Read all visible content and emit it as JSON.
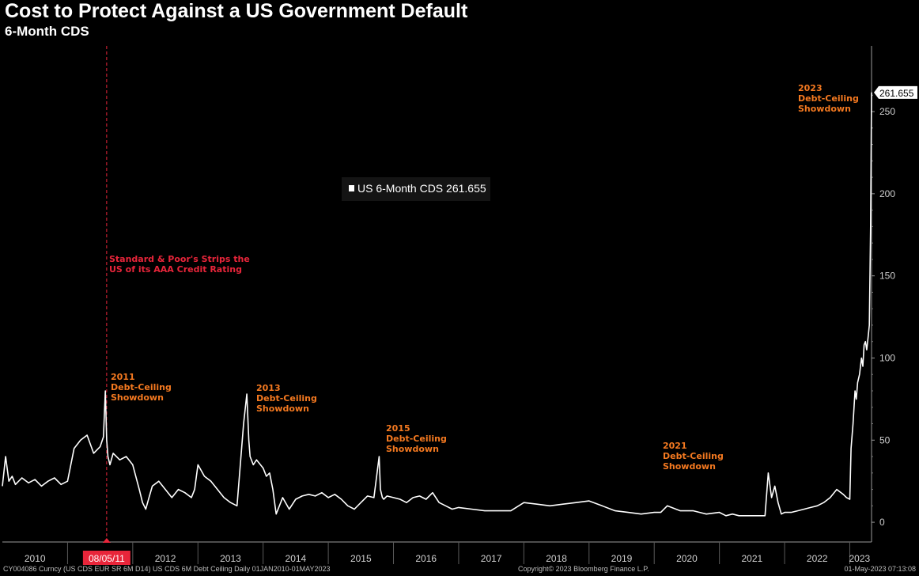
{
  "header": {
    "title": "Cost to Protect Against a US Government Default",
    "subtitle": "6-Month CDS"
  },
  "legend": {
    "label": "US 6-Month CDS 261.655"
  },
  "footer": {
    "left": "CY004086 Curncy (US CDS EUR SR 6M D14) US CDS 6M Debt Ceiling  Daily 01JAN2010-01MAY2023",
    "center": "Copyright© 2023 Bloomberg Finance L.P.",
    "right": "01-May-2023 07:13:08"
  },
  "chart_data": {
    "type": "line",
    "title": "Cost to Protect Against a US Government Default",
    "subtitle": "6-Month CDS",
    "ylim": [
      -12,
      290
    ],
    "yticks": [
      0,
      50,
      100,
      150,
      200,
      250
    ],
    "xlim": [
      2010.0,
      2023.334
    ],
    "xtick_labels": [
      "2010",
      "2012",
      "2013",
      "2014",
      "2015",
      "2016",
      "2017",
      "2018",
      "2019",
      "2020",
      "2021",
      "2022",
      "2023"
    ],
    "xtick_positions": [
      2010.5,
      2012.5,
      2013.5,
      2014.5,
      2015.5,
      2016.5,
      2017.5,
      2018.5,
      2019.5,
      2020.5,
      2021.5,
      2022.5,
      2023.15
    ],
    "year_boundaries": [
      2011,
      2012,
      2013,
      2014,
      2015,
      2016,
      2017,
      2018,
      2019,
      2020,
      2021,
      2022,
      2023
    ],
    "highlight_date": {
      "label": "08/05/11",
      "x": 2011.6
    },
    "last_value": {
      "label": "261.655",
      "value": 261.655
    },
    "colors": {
      "line": "#ffffff",
      "annotation": "#f47920",
      "event": "#e8253a",
      "axis": "#9a9a9a"
    },
    "series": [
      {
        "name": "US 6-Month CDS",
        "x": [
          2010.0,
          2010.05,
          2010.1,
          2010.15,
          2010.2,
          2010.3,
          2010.4,
          2010.5,
          2010.6,
          2010.7,
          2010.8,
          2010.9,
          2011.0,
          2011.1,
          2011.2,
          2011.3,
          2011.4,
          2011.5,
          2011.55,
          2011.58,
          2011.6,
          2011.62,
          2011.65,
          2011.7,
          2011.8,
          2011.9,
          2012.0,
          2012.1,
          2012.15,
          2012.2,
          2012.25,
          2012.3,
          2012.4,
          2012.5,
          2012.6,
          2012.7,
          2012.8,
          2012.9,
          2012.95,
          2013.0,
          2013.1,
          2013.2,
          2013.3,
          2013.4,
          2013.5,
          2013.6,
          2013.7,
          2013.75,
          2013.78,
          2013.8,
          2013.85,
          2013.9,
          2014.0,
          2014.05,
          2014.1,
          2014.15,
          2014.2,
          2014.3,
          2014.4,
          2014.5,
          2014.6,
          2014.7,
          2014.8,
          2014.9,
          2015.0,
          2015.1,
          2015.2,
          2015.3,
          2015.4,
          2015.5,
          2015.6,
          2015.7,
          2015.78,
          2015.8,
          2015.83,
          2015.85,
          2015.9,
          2016.0,
          2016.1,
          2016.2,
          2016.3,
          2016.4,
          2016.5,
          2016.6,
          2016.7,
          2016.8,
          2016.9,
          2017.0,
          2017.2,
          2017.4,
          2017.6,
          2017.8,
          2018.0,
          2018.2,
          2018.4,
          2018.6,
          2018.8,
          2019.0,
          2019.2,
          2019.4,
          2019.6,
          2019.8,
          2020.0,
          2020.1,
          2020.2,
          2020.4,
          2020.6,
          2020.8,
          2021.0,
          2021.1,
          2021.2,
          2021.3,
          2021.4,
          2021.5,
          2021.6,
          2021.7,
          2021.75,
          2021.8,
          2021.85,
          2021.9,
          2021.95,
          2022.0,
          2022.1,
          2022.2,
          2022.3,
          2022.4,
          2022.5,
          2022.6,
          2022.7,
          2022.8,
          2022.9,
          2022.95,
          2023.0,
          2023.02,
          2023.05,
          2023.08,
          2023.1,
          2023.12,
          2023.15,
          2023.18,
          2023.2,
          2023.22,
          2023.24,
          2023.26,
          2023.28,
          2023.3,
          2023.32,
          2023.334
        ],
        "values": [
          22,
          40,
          25,
          28,
          23,
          27,
          24,
          26,
          22,
          25,
          27,
          23,
          25,
          45,
          50,
          53,
          42,
          46,
          52,
          80,
          50,
          40,
          35,
          42,
          38,
          40,
          35,
          20,
          12,
          8,
          15,
          22,
          25,
          20,
          15,
          20,
          18,
          15,
          20,
          35,
          28,
          25,
          20,
          15,
          12,
          10,
          60,
          78,
          50,
          40,
          35,
          38,
          33,
          28,
          30,
          20,
          5,
          15,
          8,
          14,
          16,
          17,
          16,
          18,
          15,
          17,
          14,
          10,
          8,
          12,
          16,
          15,
          40,
          20,
          15,
          14,
          16,
          15,
          14,
          12,
          15,
          16,
          14,
          18,
          12,
          10,
          8,
          9,
          8,
          7,
          7,
          7,
          12,
          11,
          10,
          11,
          12,
          13,
          10,
          7,
          6,
          5,
          6,
          6,
          10,
          7,
          7,
          5,
          6,
          4,
          5,
          4,
          4,
          4,
          4,
          4,
          30,
          15,
          22,
          12,
          5,
          6,
          6,
          7,
          8,
          9,
          10,
          12,
          15,
          20,
          17,
          15,
          14,
          45,
          60,
          80,
          75,
          85,
          90,
          100,
          95,
          108,
          110,
          105,
          112,
          120,
          180,
          261.655
        ]
      }
    ],
    "annotations": [
      {
        "lines": [
          "2011",
          "Debt-Ceiling",
          "Showdown"
        ],
        "color": "annotation"
      },
      {
        "lines": [
          "2013",
          "Debt-Ceiling",
          "Showdown"
        ],
        "color": "annotation"
      },
      {
        "lines": [
          "2015",
          "Debt-Ceiling",
          "Showdown"
        ],
        "color": "annotation"
      },
      {
        "lines": [
          "2021",
          "Debt-Ceiling",
          "Showdown"
        ],
        "color": "annotation"
      },
      {
        "lines": [
          "2023",
          "Debt-Ceiling",
          "Showdown"
        ],
        "color": "annotation"
      },
      {
        "lines": [
          "Standard & Poor's Strips the",
          "US of its AAA Credit Rating"
        ],
        "color": "event"
      }
    ]
  }
}
